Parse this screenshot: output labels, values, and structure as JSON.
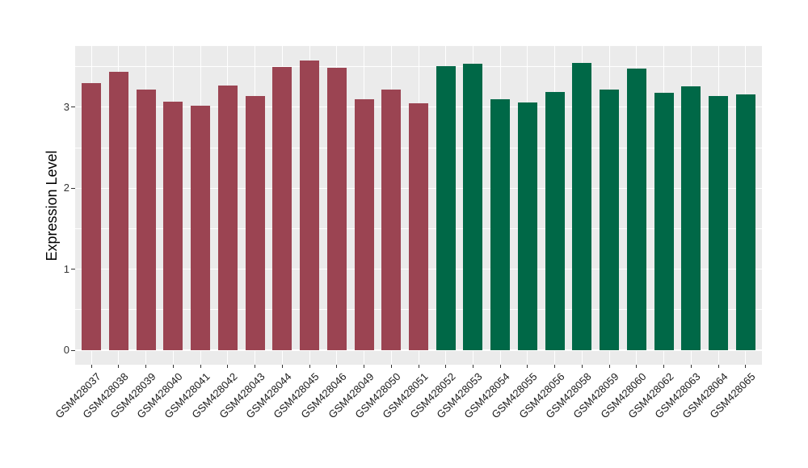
{
  "chart_data": {
    "type": "bar",
    "title": "",
    "xlabel": "",
    "ylabel": "Expression Level",
    "ylim": [
      -0.18,
      3.76
    ],
    "yticks": [
      0,
      1,
      2,
      3
    ],
    "minor_yticks": [
      0.5,
      1.5,
      2.5,
      3.5
    ],
    "grid": "on",
    "legend": "none",
    "panel_bg": "#EBEBEB",
    "grid_color": "#FFFFFF",
    "tick_color": "#333333",
    "colors": {
      "red_group": "#9B4452",
      "green_group": "#006847"
    },
    "bars": [
      {
        "label": "GSM428037",
        "value": 3.3,
        "group": "red_group"
      },
      {
        "label": "GSM428038",
        "value": 3.44,
        "group": "red_group"
      },
      {
        "label": "GSM428039",
        "value": 3.22,
        "group": "red_group"
      },
      {
        "label": "GSM428040",
        "value": 3.07,
        "group": "red_group"
      },
      {
        "label": "GSM428041",
        "value": 3.02,
        "group": "red_group"
      },
      {
        "label": "GSM428042",
        "value": 3.27,
        "group": "red_group"
      },
      {
        "label": "GSM428043",
        "value": 3.14,
        "group": "red_group"
      },
      {
        "label": "GSM428044",
        "value": 3.5,
        "group": "red_group"
      },
      {
        "label": "GSM428045",
        "value": 3.58,
        "group": "red_group"
      },
      {
        "label": "GSM428046",
        "value": 3.49,
        "group": "red_group"
      },
      {
        "label": "GSM428049",
        "value": 3.1,
        "group": "red_group"
      },
      {
        "label": "GSM428050",
        "value": 3.22,
        "group": "red_group"
      },
      {
        "label": "GSM428051",
        "value": 3.05,
        "group": "red_group"
      },
      {
        "label": "GSM428052",
        "value": 3.51,
        "group": "green_group"
      },
      {
        "label": "GSM428053",
        "value": 3.54,
        "group": "green_group"
      },
      {
        "label": "GSM428054",
        "value": 3.1,
        "group": "green_group"
      },
      {
        "label": "GSM428055",
        "value": 3.06,
        "group": "green_group"
      },
      {
        "label": "GSM428056",
        "value": 3.19,
        "group": "green_group"
      },
      {
        "label": "GSM428058",
        "value": 3.55,
        "group": "green_group"
      },
      {
        "label": "GSM428059",
        "value": 3.22,
        "group": "green_group"
      },
      {
        "label": "GSM428060",
        "value": 3.48,
        "group": "green_group"
      },
      {
        "label": "GSM428062",
        "value": 3.18,
        "group": "green_group"
      },
      {
        "label": "GSM428063",
        "value": 3.26,
        "group": "green_group"
      },
      {
        "label": "GSM428064",
        "value": 3.14,
        "group": "green_group"
      },
      {
        "label": "GSM428065",
        "value": 3.16,
        "group": "green_group"
      }
    ]
  }
}
